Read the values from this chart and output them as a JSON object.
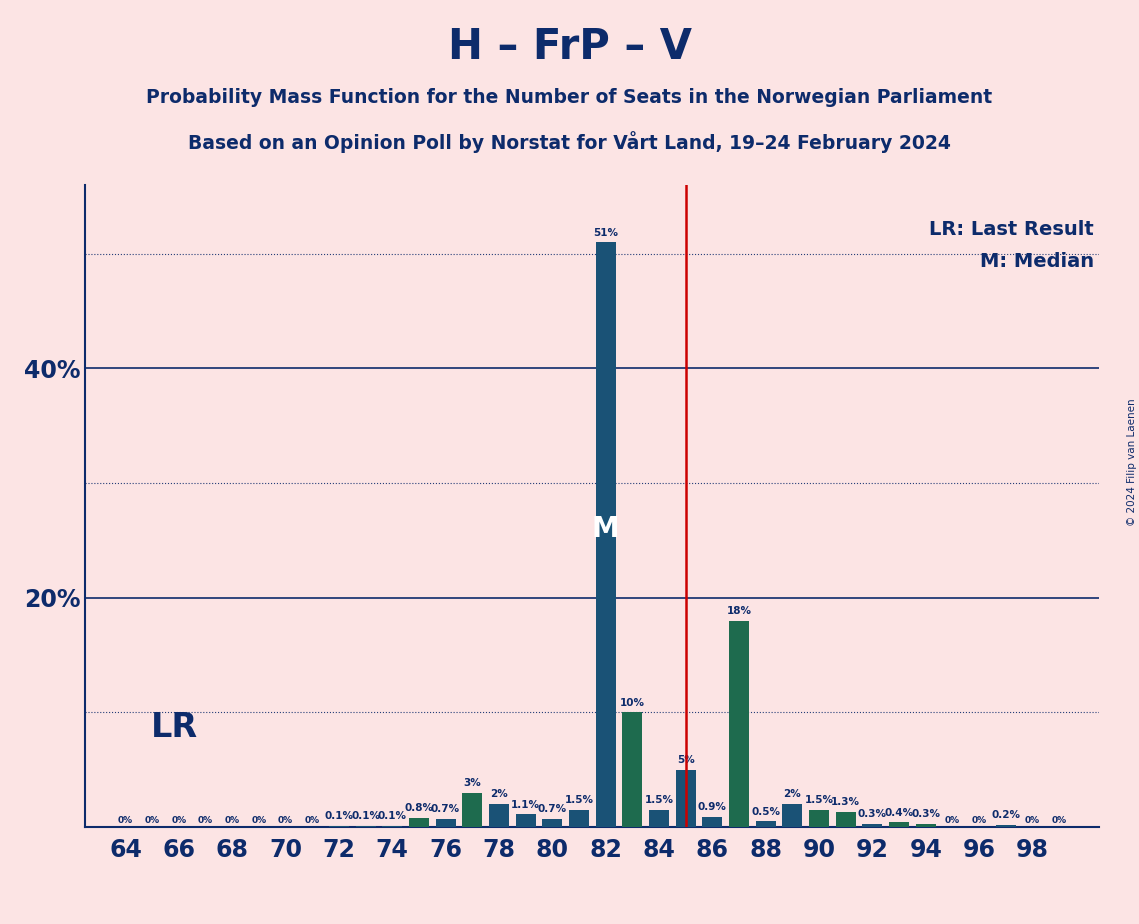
{
  "title": "H – FrP – V",
  "subtitle1": "Probability Mass Function for the Number of Seats in the Norwegian Parliament",
  "subtitle2": "Based on an Opinion Poll by Norstat for Vårt Land, 19–24 February 2024",
  "copyright": "© 2024 Filip van Laenen",
  "seats": [
    64,
    65,
    66,
    67,
    68,
    69,
    70,
    71,
    72,
    73,
    74,
    75,
    76,
    77,
    78,
    79,
    80,
    81,
    82,
    83,
    84,
    85,
    86,
    87,
    88,
    89,
    90,
    91,
    92,
    93,
    94,
    95,
    96,
    97,
    98,
    99
  ],
  "values": [
    0.0,
    0.0,
    0.0,
    0.0,
    0.0,
    0.0,
    0.0,
    0.0,
    0.1,
    0.1,
    0.1,
    0.8,
    0.7,
    3.0,
    2.0,
    1.1,
    0.7,
    1.5,
    51.0,
    10.0,
    1.5,
    5.0,
    0.9,
    18.0,
    0.5,
    2.0,
    1.5,
    1.3,
    0.3,
    0.4,
    0.3,
    0.0,
    0.0,
    0.2,
    0.0,
    0.0
  ],
  "labels": [
    "0%",
    "0%",
    "0%",
    "0%",
    "0%",
    "0%",
    "0%",
    "0%",
    "0.1%",
    "0.1%",
    "0.1%",
    "0.8%",
    "0.7%",
    "3%",
    "2%",
    "1.1%",
    "0.7%",
    "1.5%",
    "51%",
    "10%",
    "1.5%",
    "5%",
    "0.9%",
    "18%",
    "0.5%",
    "2%",
    "1.5%",
    "1.3%",
    "0.3%",
    "0.4%",
    "0.3%",
    "0%",
    "0%",
    "0.2%",
    "0%",
    "0%"
  ],
  "bar_colors": [
    "B",
    "B",
    "B",
    "B",
    "B",
    "B",
    "B",
    "B",
    "B",
    "B",
    "B",
    "G",
    "B",
    "G",
    "B",
    "B",
    "B",
    "B",
    "B",
    "G",
    "B",
    "B",
    "B",
    "G",
    "B",
    "B",
    "G",
    "G",
    "B",
    "G",
    "G",
    "B",
    "B",
    "B",
    "B",
    "B"
  ],
  "median_seat": 82,
  "lr_seat": 85,
  "background_color": "#fce4e4",
  "bar_color_blue": "#1a5276",
  "bar_color_green": "#1e6b4e",
  "title_color": "#0d2b6b",
  "lr_line_color": "#cc0000",
  "xlim": [
    62.5,
    100.5
  ],
  "ylim": [
    0,
    56
  ]
}
